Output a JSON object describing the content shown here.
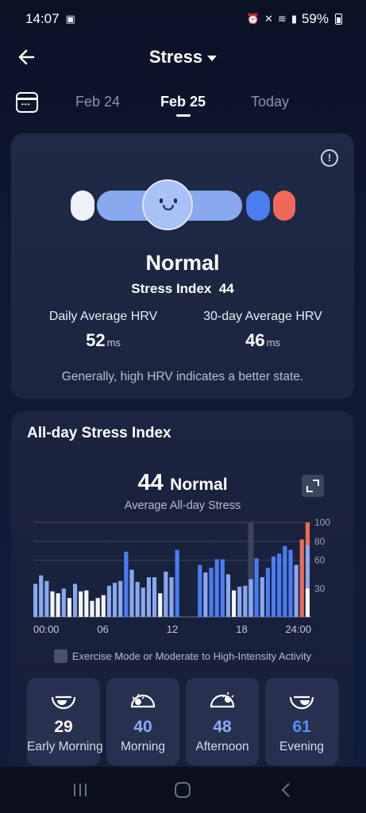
{
  "status_bar": {
    "time": "14:07",
    "battery": "59%"
  },
  "header": {
    "title": "Stress"
  },
  "dates": {
    "prev": "Feb 24",
    "current": "Feb 25",
    "next": "Today"
  },
  "summary": {
    "state": "Normal",
    "stress_index_label": "Stress Index",
    "stress_index_value": "44",
    "daily_hrv_label": "Daily Average HRV",
    "daily_hrv_value": "52",
    "month_hrv_label": "30-day Average HRV",
    "month_hrv_value": "46",
    "hrv_unit": "ms",
    "note": "Generally, high HRV indicates a better state."
  },
  "allday": {
    "title": "All-day Stress Index",
    "avg_value": "44",
    "avg_state": "Normal",
    "avg_label": "Average All-day Stress",
    "legend": "Exercise Mode or Moderate to High-Intensity Activity"
  },
  "chart_data": {
    "type": "bar",
    "x_tick_labels": [
      "00:00",
      "06",
      "12",
      "18",
      "24:00"
    ],
    "y_tick_labels": [
      "100",
      "80",
      "60",
      "30"
    ],
    "ylim": [
      0,
      100
    ],
    "values": [
      35,
      44,
      38,
      27,
      25,
      30,
      20,
      35,
      27,
      28,
      17,
      20,
      23,
      33,
      36,
      38,
      69,
      50,
      37,
      31,
      42,
      42,
      25,
      48,
      42,
      71,
      0,
      0,
      0,
      55,
      47,
      52,
      61,
      61,
      45,
      28,
      32,
      33,
      40,
      62,
      42,
      52,
      64,
      67,
      75,
      71,
      55,
      82,
      76
    ],
    "levels": [
      "light",
      "light",
      "light",
      "white",
      "white",
      "light",
      "white",
      "light",
      "white",
      "white",
      "white",
      "white",
      "white",
      "light",
      "light",
      "light",
      "dark",
      "light",
      "light",
      "light",
      "light",
      "light",
      "white",
      "light",
      "light",
      "dark",
      "none",
      "none",
      "none",
      "dark",
      "light",
      "dark",
      "dark",
      "dark",
      "light",
      "white",
      "light",
      "light",
      "light",
      "dark",
      "light",
      "dark",
      "dark",
      "dark",
      "dark",
      "dark",
      "light",
      "red",
      "mixed"
    ],
    "exercise_range_index": [
      38,
      38
    ],
    "colors": {
      "white": "#f2f4f8",
      "light": "#88a8f0",
      "dark": "#4b7cf0",
      "red": "#f26858",
      "exercise": "#3b4160"
    }
  },
  "periods": [
    {
      "value": "29",
      "label": "Early Morning",
      "icon": "moon-set-icon",
      "color": "#ffffff"
    },
    {
      "value": "40",
      "label": "Morning",
      "icon": "sunrise-icon",
      "color": "#8aaaf4"
    },
    {
      "value": "48",
      "label": "Afternoon",
      "icon": "sun-set-icon",
      "color": "#8aaaf4"
    },
    {
      "value": "61",
      "label": "Evening",
      "icon": "moon-rise-icon",
      "color": "#5f8cf4"
    }
  ]
}
